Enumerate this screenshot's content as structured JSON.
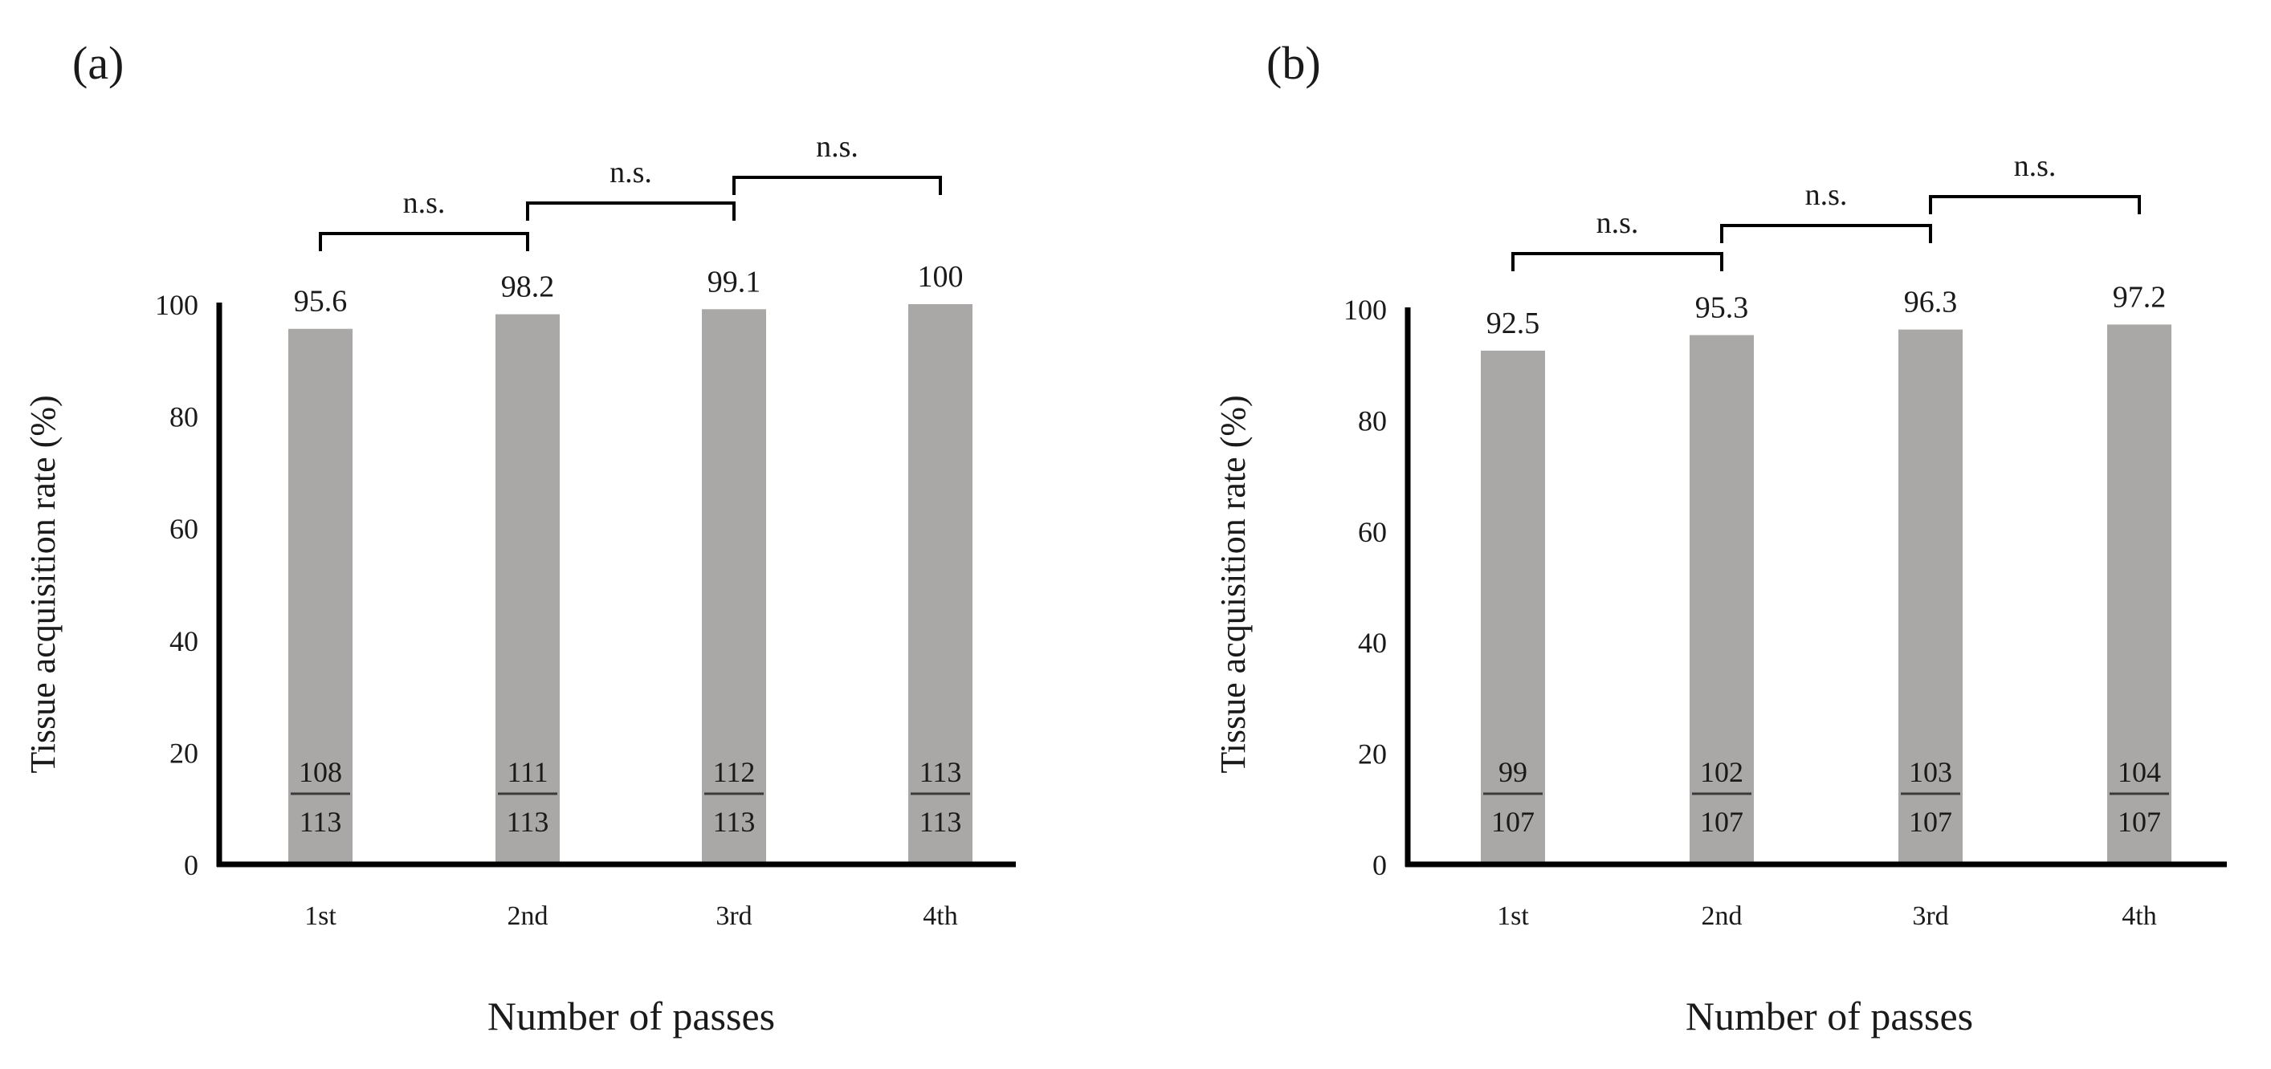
{
  "chart_data": [
    {
      "panel_label": "(a)",
      "type": "bar",
      "categories": [
        "1st",
        "2nd",
        "3rd",
        "4th"
      ],
      "values": [
        95.6,
        98.2,
        99.1,
        100
      ],
      "value_labels": [
        "95.6",
        "98.2",
        "99.1",
        "100"
      ],
      "numerators": [
        "108",
        "111",
        "112",
        "113"
      ],
      "denominators": [
        "113",
        "113",
        "113",
        "113"
      ],
      "xlabel": "Number of passes",
      "ylabel": "Tissue acquisition rate (%)",
      "ylim": [
        0,
        100
      ],
      "yticks": [
        "0",
        "20",
        "40",
        "60",
        "80",
        "100"
      ],
      "comparisons": [
        {
          "from": 0,
          "to": 1,
          "label": "n.s."
        },
        {
          "from": 1,
          "to": 2,
          "label": "n.s."
        },
        {
          "from": 2,
          "to": 3,
          "label": "n.s."
        }
      ],
      "bar_color": "#a9a8a6"
    },
    {
      "panel_label": "(b)",
      "type": "bar",
      "categories": [
        "1st",
        "2nd",
        "3rd",
        "4th"
      ],
      "values": [
        92.5,
        95.3,
        96.3,
        97.2
      ],
      "value_labels": [
        "92.5",
        "95.3",
        "96.3",
        "97.2"
      ],
      "numerators": [
        "99",
        "102",
        "103",
        "104"
      ],
      "denominators": [
        "107",
        "107",
        "107",
        "107"
      ],
      "xlabel": "Number of passes",
      "ylabel": "Tissue acquisition rate (%)",
      "ylim": [
        0,
        100
      ],
      "yticks": [
        "0",
        "20",
        "40",
        "60",
        "80",
        "100"
      ],
      "comparisons": [
        {
          "from": 0,
          "to": 1,
          "label": "n.s."
        },
        {
          "from": 1,
          "to": 2,
          "label": "n.s."
        },
        {
          "from": 2,
          "to": 3,
          "label": "n.s."
        }
      ],
      "bar_color": "#a9a8a6"
    }
  ]
}
